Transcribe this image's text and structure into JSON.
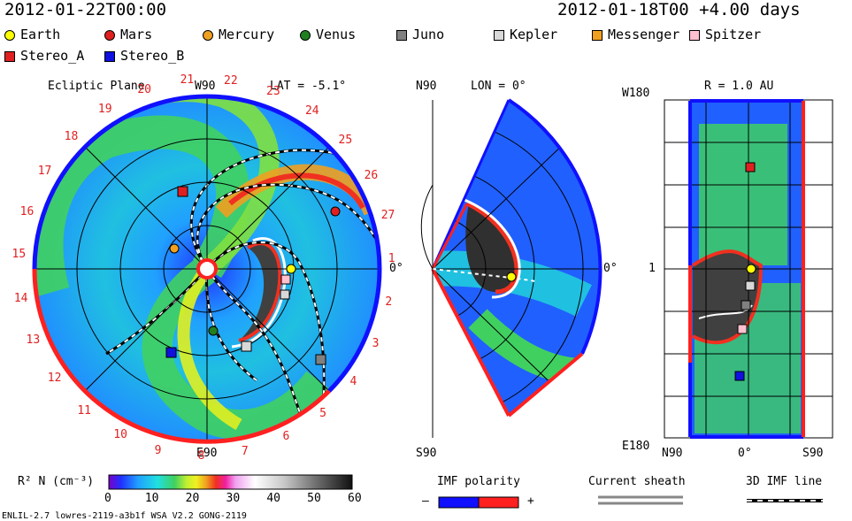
{
  "header": {
    "left_time": "2012-01-22T00:00",
    "right_time": "2012-01-18T00 +4.00 days"
  },
  "legend": [
    {
      "name": "Earth",
      "color": "#ffff00",
      "shape": "circle"
    },
    {
      "name": "Mars",
      "color": "#e02020",
      "shape": "circle"
    },
    {
      "name": "Mercury",
      "color": "#f0a020",
      "shape": "circle"
    },
    {
      "name": "Venus",
      "color": "#208020",
      "shape": "circle"
    },
    {
      "name": "Juno",
      "color": "#808080",
      "shape": "square"
    },
    {
      "name": "Kepler",
      "color": "#d8d8d8",
      "shape": "square"
    },
    {
      "name": "Messenger",
      "color": "#f0a020",
      "shape": "square"
    },
    {
      "name": "Spitzer",
      "color": "#ffc0d0",
      "shape": "square"
    },
    {
      "name": "Stereo_A",
      "color": "#e02020",
      "shape": "square"
    },
    {
      "name": "Stereo_B",
      "color": "#1010e0",
      "shape": "square"
    }
  ],
  "panel1": {
    "title": "Ecliptic Plane",
    "top_label": "W90",
    "bottom_label": "E90",
    "lat_label": "LAT = -5.1°",
    "right_label": "0°",
    "sectors": [
      "1",
      "2",
      "3",
      "4",
      "5",
      "6",
      "7",
      "8",
      "9",
      "10",
      "11",
      "12",
      "13",
      "14",
      "15",
      "16",
      "17",
      "18",
      "19",
      "20",
      "21",
      "22",
      "23",
      "24",
      "25",
      "26",
      "27"
    ]
  },
  "panel2": {
    "top_label": "N90",
    "lon_label": "LON = 0°",
    "bottom_label": "S90",
    "right_label": "0°"
  },
  "panel3": {
    "title": "R = 1.0 AU",
    "top_left": "W180",
    "mid_left": "1",
    "bottom_left": "E180",
    "x_left": "N90",
    "x_mid": "0°",
    "x_right": "S90"
  },
  "colorbar": {
    "label": "R² N (cm⁻³)",
    "ticks": [
      "0",
      "10",
      "20",
      "30",
      "40",
      "50",
      "60"
    ],
    "colors": [
      "#7a00c8",
      "#2030ff",
      "#20a0ff",
      "#20e0e0",
      "#40d060",
      "#c0f030",
      "#f0f020",
      "#f0a020",
      "#f03020",
      "#f020a0",
      "#f0a0f0",
      "#ffffff",
      "#c8c8c8",
      "#909090",
      "#505050",
      "#101010"
    ]
  },
  "imf": {
    "label": "IMF polarity",
    "minus": "–",
    "plus": "+",
    "neg_color": "#1010ff",
    "pos_color": "#ff2020"
  },
  "sheath": {
    "label": "Current sheath"
  },
  "imfline": {
    "label": "3D IMF line"
  },
  "footer": "ENLIL-2.7 lowres-2119-a3b1f WSA V2.2 GONG-2119"
}
